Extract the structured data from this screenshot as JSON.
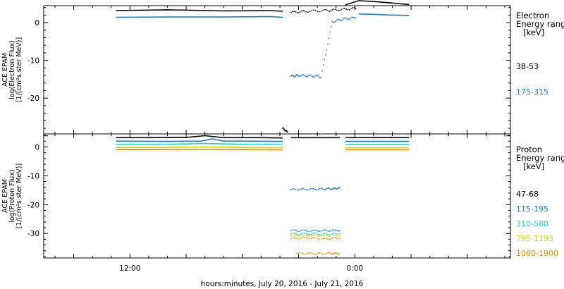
{
  "chart_data": [
    {
      "type": "scatter",
      "ylabel_lines": [
        "ACE EPAM",
        "log(Electron Flux)",
        "[1/(cm²s ster MeV)]"
      ],
      "ylim": [
        -30,
        4.5
      ],
      "yticks": [
        0,
        -10,
        -20
      ],
      "legend": {
        "title_lines": [
          "Electron",
          "Energy ranges"
        ],
        "unit": "[keV]",
        "entries": [
          {
            "label": "38-53",
            "color": "#000000"
          },
          {
            "label": "175-315",
            "color": "#1f7bd1"
          }
        ]
      },
      "series": [
        {
          "name": "38-53",
          "color": "#000000",
          "segments": [
            {
              "x": [
                -0.75,
                2.0,
                5.0,
                7.5,
                8.15
              ],
              "y": [
                3.2,
                3.4,
                3.1,
                3.2,
                3.0
              ],
              "mode": "line"
            },
            {
              "x": [
                8.15,
                8.4
              ],
              "y": [
                -28,
                -29
              ],
              "mode": "points"
            },
            {
              "x": [
                8.6,
                9.4,
                10.4,
                11.2,
                12.05
              ],
              "y": [
                2.7,
                3.0,
                3.2,
                3.4,
                3.8
              ],
              "mode": "points"
            },
            {
              "x": [
                11.5,
                12.2,
                13.0,
                14.0,
                14.9
              ],
              "y": [
                4.7,
                5.8,
                5.6,
                5.2,
                4.8
              ],
              "mode": "line"
            }
          ]
        },
        {
          "name": "175-315",
          "color": "#1f7bd1",
          "segments": [
            {
              "x": [
                -0.75,
                2.0,
                5.0,
                7.5,
                8.15
              ],
              "y": [
                1.4,
                1.5,
                1.5,
                1.6,
                1.4
              ],
              "mode": "line"
            },
            {
              "x": [
                8.6,
                9.0,
                9.6,
                10.2,
                10.8,
                11.4,
                12.05
              ],
              "y": [
                -14.2,
                -14.0,
                -14.1,
                -14.3,
                0.2,
                1.0,
                1.3
              ],
              "mode": "points"
            },
            {
              "x": [
                12.2,
                13.0,
                14.0,
                14.9
              ],
              "y": [
                2.3,
                2.2,
                2.0,
                1.9
              ],
              "mode": "line"
            }
          ]
        }
      ]
    },
    {
      "type": "scatter",
      "ylabel_lines": [
        "ACE EPAM",
        "log(Proton Flux)",
        "[1/(cm²s ster MeV)]"
      ],
      "ylim": [
        -39,
        4.5
      ],
      "yticks": [
        0,
        -10,
        -20,
        -30
      ],
      "legend": {
        "title_lines": [
          "Proton",
          "Energy ranges"
        ],
        "unit": "[keV]",
        "entries": [
          {
            "label": "47-68",
            "color": "#000000"
          },
          {
            "label": "115-195",
            "color": "#1f7bd1"
          },
          {
            "label": "310-580",
            "color": "#18d8d0"
          },
          {
            "label": "795-1193",
            "color": "#d6d400"
          },
          {
            "label": "1060-1900",
            "color": "#f08c00"
          }
        ]
      },
      "series": [
        {
          "name": "47-68",
          "color": "#000000",
          "segments": [
            {
              "x": [
                -0.75,
                1.0,
                3.0,
                4.0,
                5.0,
                7.0,
                8.15
              ],
              "y": [
                3.2,
                3.2,
                3.3,
                3.9,
                3.2,
                3.2,
                3.1
              ],
              "mode": "line"
            },
            {
              "x": [
                8.6,
                10.0,
                11.2
              ],
              "y": [
                3.2,
                3.2,
                3.2
              ],
              "mode": "line"
            },
            {
              "x": [
                11.5,
                12.2,
                13.5,
                14.9
              ],
              "y": [
                3.2,
                3.2,
                3.2,
                3.2
              ],
              "mode": "line"
            }
          ]
        },
        {
          "name": "115-195",
          "color": "#1f7bd1",
          "segments": [
            {
              "x": [
                -0.75,
                2.0,
                3.8,
                4.4,
                5.0,
                6.0,
                8.15
              ],
              "y": [
                2.0,
                1.9,
                2.0,
                2.8,
                2.0,
                2.0,
                1.9
              ],
              "mode": "line"
            },
            {
              "x": [
                8.6,
                9.4,
                10.2,
                10.8,
                11.2
              ],
              "y": [
                -14.8,
                -14.7,
                -14.6,
                -14.5,
                -14.3
              ],
              "mode": "points"
            },
            {
              "x": [
                8.6,
                9.5,
                10.4,
                11.2
              ],
              "y": [
                -29.0,
                -29.1,
                -29.0,
                -29.0
              ],
              "mode": "points"
            },
            {
              "x": [
                11.5,
                12.5,
                13.5,
                14.9
              ],
              "y": [
                1.9,
                1.9,
                1.9,
                1.9
              ],
              "mode": "line"
            }
          ]
        },
        {
          "name": "310-580",
          "color": "#18d8d0",
          "segments": [
            {
              "x": [
                -0.75,
                2.0,
                4.0,
                6.0,
                8.15
              ],
              "y": [
                0.9,
                0.9,
                1.2,
                0.9,
                0.9
              ],
              "mode": "line"
            },
            {
              "x": [
                8.6,
                9.5,
                10.4,
                11.2
              ],
              "y": [
                -30.2,
                -30.1,
                -30.2,
                -30.1
              ],
              "mode": "points"
            },
            {
              "x": [
                11.5,
                12.5,
                13.5,
                14.9
              ],
              "y": [
                0.8,
                0.8,
                0.8,
                0.8
              ],
              "mode": "line"
            }
          ]
        },
        {
          "name": "795-1193",
          "color": "#d6d400",
          "segments": [
            {
              "x": [
                -0.75,
                2.0,
                4.0,
                6.0,
                8.15
              ],
              "y": [
                -0.2,
                -0.2,
                0.0,
                -0.2,
                -0.3
              ],
              "mode": "line"
            },
            {
              "x": [
                8.6,
                9.5,
                10.4,
                11.2
              ],
              "y": [
                -30.8,
                -30.7,
                -30.8,
                -30.8
              ],
              "mode": "points"
            },
            {
              "x": [
                11.5,
                12.5,
                13.5,
                14.9
              ],
              "y": [
                -0.3,
                -0.3,
                -0.3,
                -0.3
              ],
              "mode": "line"
            }
          ]
        },
        {
          "name": "1060-1900",
          "color": "#f08c00",
          "segments": [
            {
              "x": [
                -0.75,
                2.0,
                4.0,
                6.0,
                8.15
              ],
              "y": [
                -0.9,
                -0.9,
                -0.8,
                -0.9,
                -1.0
              ],
              "mode": "line"
            },
            {
              "x": [
                8.6,
                9.5,
                10.4,
                11.2
              ],
              "y": [
                -31.8,
                -31.5,
                -31.9,
                -31.6
              ],
              "mode": "points"
            },
            {
              "x": [
                8.9,
                9.8,
                10.6,
                11.2
              ],
              "y": [
                -36.9,
                -37.0,
                -36.9,
                -37.0
              ],
              "mode": "points"
            },
            {
              "x": [
                11.5,
                12.5,
                13.5,
                14.9
              ],
              "y": [
                -1.0,
                -1.0,
                -1.0,
                -1.0
              ],
              "mode": "line"
            }
          ]
        }
      ]
    }
  ],
  "x_axis": {
    "range_hours": [
      -4.6,
      20.3
    ],
    "tick_labels": [
      "12:00",
      "0:00"
    ],
    "label": "hours:minutes, July 20, 2016 - July 21, 2016"
  },
  "colors": {
    "frame": "#000000",
    "background": "#ffffff"
  }
}
